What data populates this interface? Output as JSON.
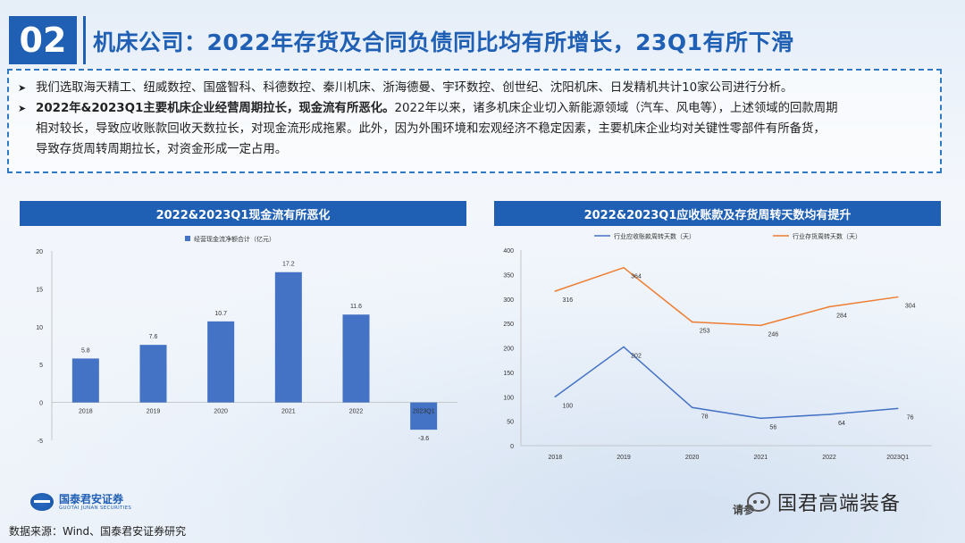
{
  "header": {
    "section_number": "02",
    "title": "机床公司：2022年存货及合同负债同比均有所增长，23Q1有所下滑"
  },
  "textbox": {
    "bullet1": "我们选取海天精工、纽威数控、国盛智科、科德数控、秦川机床、浙海德曼、宇环数控、创世纪、沈阳机床、日发精机共计10家公司进行分析。",
    "bullet2_bold": "2022年&2023Q1主要机床企业经营周期拉长，现金流有所恶化。",
    "bullet2_rest_line1": "2022年以来，诸多机床企业切入新能源领域（汽车、风电等），上述领域的回款周期",
    "bullet2_line2": "相对较长，导致应收账款回收天数拉长，对现金流形成拖累。此外，因为外围环境和宏观经济不稳定因素，主要机床企业均对关键性零部件有所备货，",
    "bullet2_line3": "导致存货周转周期拉长，对资金形成一定占用。"
  },
  "chart_data": [
    {
      "type": "bar",
      "title": "2022&2023Q1现金流有所恶化",
      "categories": [
        "2018",
        "2019",
        "2020",
        "2021",
        "2022",
        "2023Q1"
      ],
      "series": [
        {
          "name": "经营现金流净额合计（亿元）",
          "values": [
            5.8,
            7.6,
            10.7,
            17.2,
            11.6,
            -3.6
          ]
        }
      ],
      "ylim": [
        -5,
        20
      ],
      "yticks": [
        "-5",
        "0",
        "5",
        "10",
        "15",
        "20"
      ],
      "color": "#4472c4"
    },
    {
      "type": "line",
      "title": "2022&2023Q1应收账款及存货周转天数均有提升",
      "categories": [
        "2018",
        "2019",
        "2020",
        "2021",
        "2022",
        "2023Q1"
      ],
      "series": [
        {
          "name": "行业应收账款周转天数（天）",
          "values": [
            100,
            202,
            78,
            56,
            64,
            76
          ],
          "color": "#4472c4"
        },
        {
          "name": "行业存货周转天数（天）",
          "values": [
            316,
            364,
            253,
            246,
            284,
            304
          ],
          "color": "#ed7d31"
        }
      ],
      "ylim": [
        0,
        400
      ],
      "yticks": [
        "0",
        "50",
        "100",
        "150",
        "200",
        "250",
        "300",
        "350",
        "400"
      ]
    }
  ],
  "footer": {
    "logo_cn": "国泰君安证券",
    "logo_en": "GUOTAI JUNAN SECURITIES",
    "source": "数据来源：Wind、国泰君安证券研究",
    "watermark": "国君高端装备",
    "watermark_sub": "请参"
  }
}
